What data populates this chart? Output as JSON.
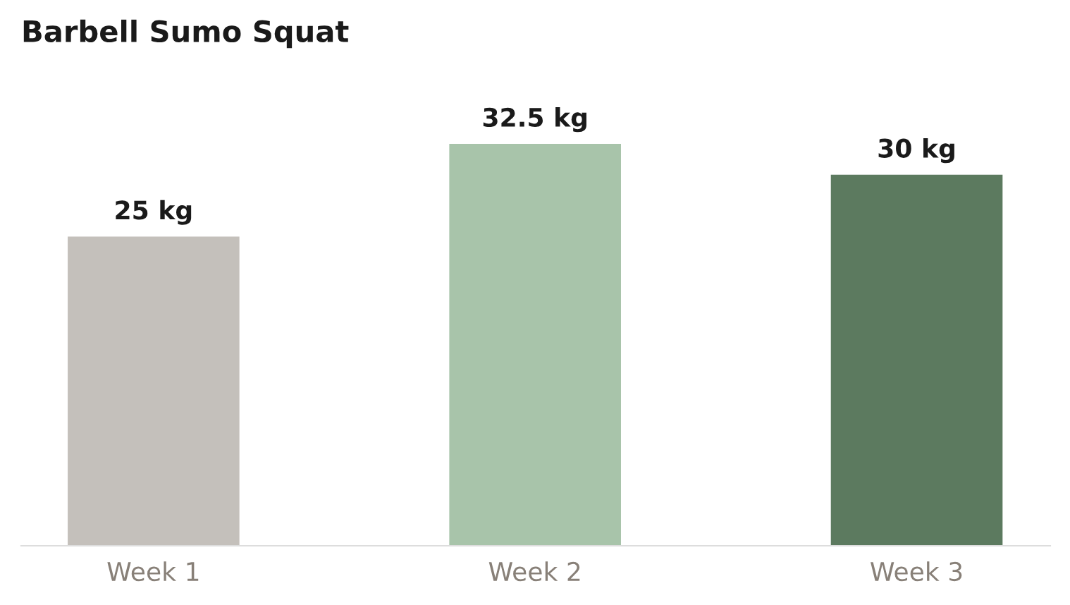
{
  "chart_data": {
    "type": "bar",
    "title": "Barbell Sumo Squat",
    "categories": [
      "Week 1",
      "Week 2",
      "Week 3"
    ],
    "values": [
      25,
      32.5,
      30
    ],
    "colors": [
      "#c4c0bb",
      "#a8c4aa",
      "#5c7a5f"
    ],
    "value_labels": [
      "25 kg",
      "32.5 kg",
      "30 kg"
    ],
    "tick_labels": "x",
    "grid": false,
    "legend": false
  }
}
